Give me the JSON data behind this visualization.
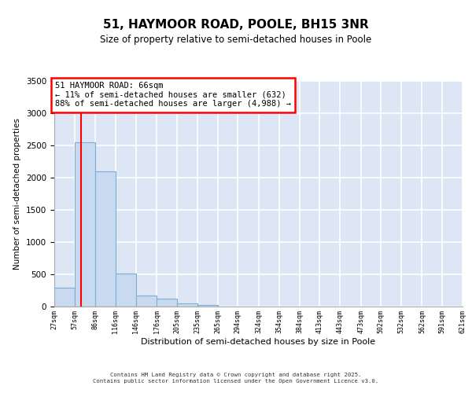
{
  "title": "51, HAYMOOR ROAD, POOLE, BH15 3NR",
  "subtitle": "Size of property relative to semi-detached houses in Poole",
  "xlabel": "Distribution of semi-detached houses by size in Poole",
  "ylabel": "Number of semi-detached properties",
  "bins": [
    27,
    57,
    86,
    116,
    146,
    176,
    205,
    235,
    265,
    294,
    324,
    354,
    384,
    413,
    443,
    473,
    502,
    532,
    562,
    591,
    621
  ],
  "counts": [
    295,
    2550,
    2100,
    510,
    165,
    120,
    48,
    28,
    4,
    2,
    1,
    0,
    0,
    0,
    0,
    0,
    0,
    0,
    0,
    0
  ],
  "bar_color": "#c9d9ef",
  "bar_edge_color": "#7bafd4",
  "property_line_x": 66,
  "property_line_color": "red",
  "annotation_title": "51 HAYMOOR ROAD: 66sqm",
  "annotation_line1": "← 11% of semi-detached houses are smaller (632)",
  "annotation_line2": "88% of semi-detached houses are larger (4,988) →",
  "annotation_box_color": "red",
  "annotation_bg_color": "white",
  "ylim": [
    0,
    3500
  ],
  "yticks": [
    0,
    500,
    1000,
    1500,
    2000,
    2500,
    3000,
    3500
  ],
  "footer_line1": "Contains HM Land Registry data © Crown copyright and database right 2025.",
  "footer_line2": "Contains public sector information licensed under the Open Government Licence v3.0.",
  "bg_color": "#dce6f5",
  "grid_color": "white",
  "title_fontsize": 11,
  "subtitle_fontsize": 8.5,
  "ylabel_fontsize": 7.5,
  "xlabel_fontsize": 8,
  "ytick_fontsize": 7.5,
  "xtick_fontsize": 6
}
